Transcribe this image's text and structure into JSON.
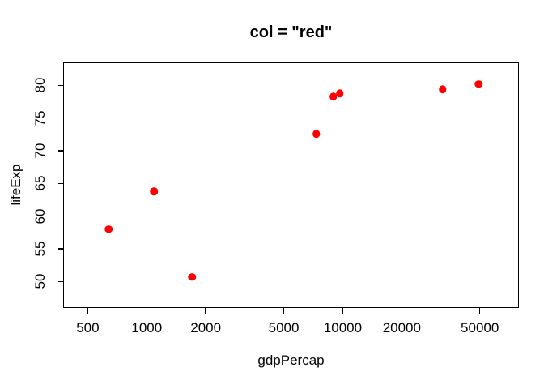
{
  "chart_data": {
    "type": "scatter",
    "title": "col = \"red\"",
    "xlabel": "gdpPercap",
    "ylabel": "lifeExp",
    "x_scale": "log10",
    "x_ticks": [
      500,
      1000,
      2000,
      5000,
      10000,
      20000,
      50000
    ],
    "y_ticks": [
      50,
      55,
      60,
      65,
      70,
      75,
      80
    ],
    "xlim": [
      378,
      78400
    ],
    "ylim": [
      46.0,
      83.4
    ],
    "grid": false,
    "legend": false,
    "point_color": "#FF0000",
    "point_shape": "filled-circle",
    "points": [
      {
        "x": 640,
        "y": 58.0
      },
      {
        "x": 1090,
        "y": 63.8
      },
      {
        "x": 1700,
        "y": 50.7
      },
      {
        "x": 7320,
        "y": 72.6
      },
      {
        "x": 8950,
        "y": 78.3
      },
      {
        "x": 9650,
        "y": 78.8
      },
      {
        "x": 32300,
        "y": 79.4
      },
      {
        "x": 49400,
        "y": 80.2
      }
    ]
  }
}
